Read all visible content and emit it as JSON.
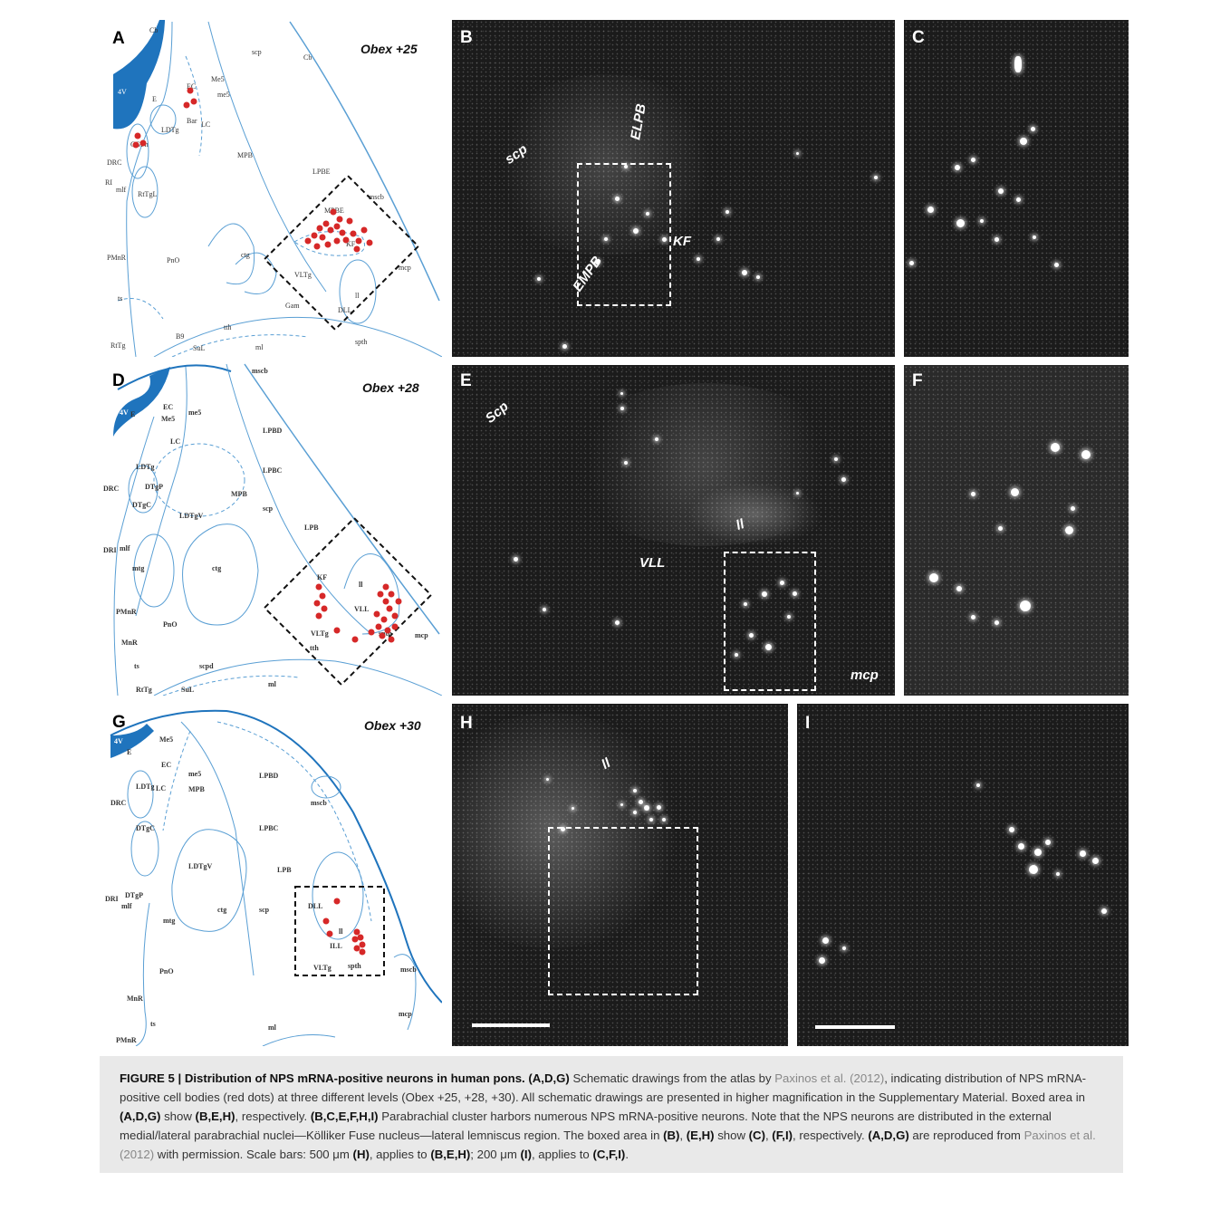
{
  "figure": {
    "panels": {
      "A": "A",
      "B": "B",
      "C": "C",
      "D": "D",
      "E": "E",
      "F": "F",
      "G": "G",
      "H": "H",
      "I": "I"
    },
    "obex": {
      "row1": "Obex +25",
      "row2": "Obex +28",
      "row3": "Obex +30"
    },
    "micro_labels": {
      "B": [
        "ELPB",
        "scp",
        "KF",
        "EMPB"
      ],
      "E": [
        "Scp",
        "ll",
        "VLL",
        "mcp"
      ],
      "H": [
        "ll"
      ]
    },
    "atlas_labels": {
      "A": [
        "Cb",
        "scp",
        "Cb",
        "Me5",
        "EC",
        "me5",
        "4V",
        "E",
        "Bar",
        "LC",
        "LDTg",
        "CGPn",
        "DRC",
        "RI",
        "mlf",
        "RtTgL",
        "MPB",
        "LPBE",
        "mscb",
        "MPBE",
        "KF",
        "PMnR",
        "PnO",
        "ctg",
        "VLTg",
        "mcp",
        "ll",
        "Gam",
        "ts",
        "RtTg",
        "B9",
        "tth",
        "SuL",
        "ml",
        "spth",
        "DLL"
      ],
      "D": [
        "mscb",
        "4V",
        "E",
        "EC",
        "Me5",
        "me5",
        "LPBD",
        "LC",
        "LPBC",
        "LDTg",
        "DRC",
        "DTgP",
        "MPB",
        "scp",
        "DTgC",
        "LDTgV",
        "LPB",
        "DRI",
        "mlf",
        "mtg",
        "ctg",
        "KF",
        "ll",
        "PMnR",
        "VLL",
        "PnO",
        "VLTg",
        "spth",
        "mcp",
        "MnR",
        "tth",
        "scpd",
        "ts",
        "ml",
        "RtTg",
        "SuL"
      ],
      "G": [
        "4V",
        "Me5",
        "E",
        "EC",
        "me5",
        "LPBD",
        "LDTg",
        "LC",
        "MPB",
        "DRC",
        "mscb",
        "DTgC",
        "LPBC",
        "LPB",
        "LDTgV",
        "DRI",
        "DTgP",
        "mlf",
        "DLL",
        "scp",
        "mtg",
        "ctg",
        "ll",
        "ILL",
        "VLTg",
        "spth",
        "PnO",
        "mscb",
        "MnR",
        "mcp",
        "ts",
        "PMnR",
        "ml"
      ]
    }
  },
  "caption": {
    "title": "FIGURE 5 | Distribution of NPS mRNA-positive neurons in human pons.",
    "s1_label": "(A,D,G)",
    "s1_text_a": " Schematic drawings from the atlas by ",
    "ref1": "Paxinos et al. (2012)",
    "s1_text_b": ", indicating distribution of NPS mRNA-positive cell bodies (red dots) at three different levels (Obex +25, +28, +30). All schematic drawings are presented in higher magnification in the Supplementary Material. Boxed area in ",
    "s2_label": "(A,D,G)",
    "s2_text": " show ",
    "s2_label2": "(B,E,H)",
    "s2_text2": ", respectively. ",
    "s3_label": "(B,C,E,F,H,I)",
    "s3_text": " Parabrachial cluster harbors numerous NPS mRNA-positive neurons. Note that the NPS neurons are distributed in the external medial/lateral parabrachial nuclei—Kölliker Fuse nucleus—lateral lemniscus region. The boxed area in ",
    "s4_label": "(B)",
    "s4_text": ", ",
    "s4_label2": "(E,H)",
    "s4_text2": " show ",
    "s4_label3": "(C)",
    "s4_text3": ", ",
    "s4_label4": "(F,I)",
    "s4_text4": ", respectively. ",
    "s5_label": "(A,D,G)",
    "s5_text": " are reproduced from ",
    "ref2": "Paxinos et al. (2012)",
    "s5_text2": " with permission. Scale bars: 500 μm ",
    "s5_label2": "(H)",
    "s5_text3": ", applies to ",
    "s5_label3": "(B,E,H)",
    "s5_text4": "; 200 μm ",
    "s5_label4": "(I)",
    "s5_text5": ", applies to ",
    "s5_label5": "(C,F,I)",
    "s5_text6": "."
  },
  "colors": {
    "atlas_line": "#5a9fd4",
    "ventricle": "#1f74bd",
    "dot": "#d62828"
  }
}
